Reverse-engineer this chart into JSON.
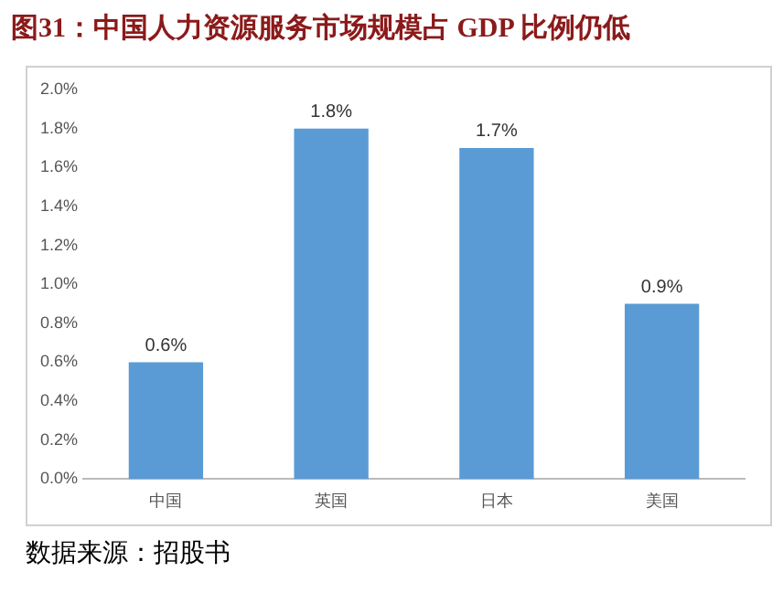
{
  "chart_data": {
    "type": "bar",
    "title": "图31：中国人力资源服务市场规模占 GDP 比例仍低",
    "categories": [
      "中国",
      "英国",
      "日本",
      "美国"
    ],
    "values": [
      0.6,
      1.8,
      1.7,
      0.9
    ],
    "value_labels": [
      "0.6%",
      "1.8%",
      "1.7%",
      "0.9%"
    ],
    "color": "#5b9bd5",
    "ylim": [
      0,
      2
    ],
    "yticks": [
      {
        "value": 0,
        "label": "0.0%"
      },
      {
        "value": 0.2,
        "label": "0.2%"
      },
      {
        "value": 0.4,
        "label": "0.4%"
      },
      {
        "value": 0.6,
        "label": "0.6%"
      },
      {
        "value": 0.8,
        "label": "0.8%"
      },
      {
        "value": 1,
        "label": "1.0%"
      },
      {
        "value": 1.2,
        "label": "1.2%"
      },
      {
        "value": 1.4,
        "label": "1.4%"
      },
      {
        "value": 1.6,
        "label": "1.6%"
      },
      {
        "value": 1.8,
        "label": "1.8%"
      },
      {
        "value": 2,
        "label": "2.0%"
      }
    ],
    "grid": false,
    "legend": false,
    "annotations": [
      "数据来源：招股书"
    ]
  }
}
